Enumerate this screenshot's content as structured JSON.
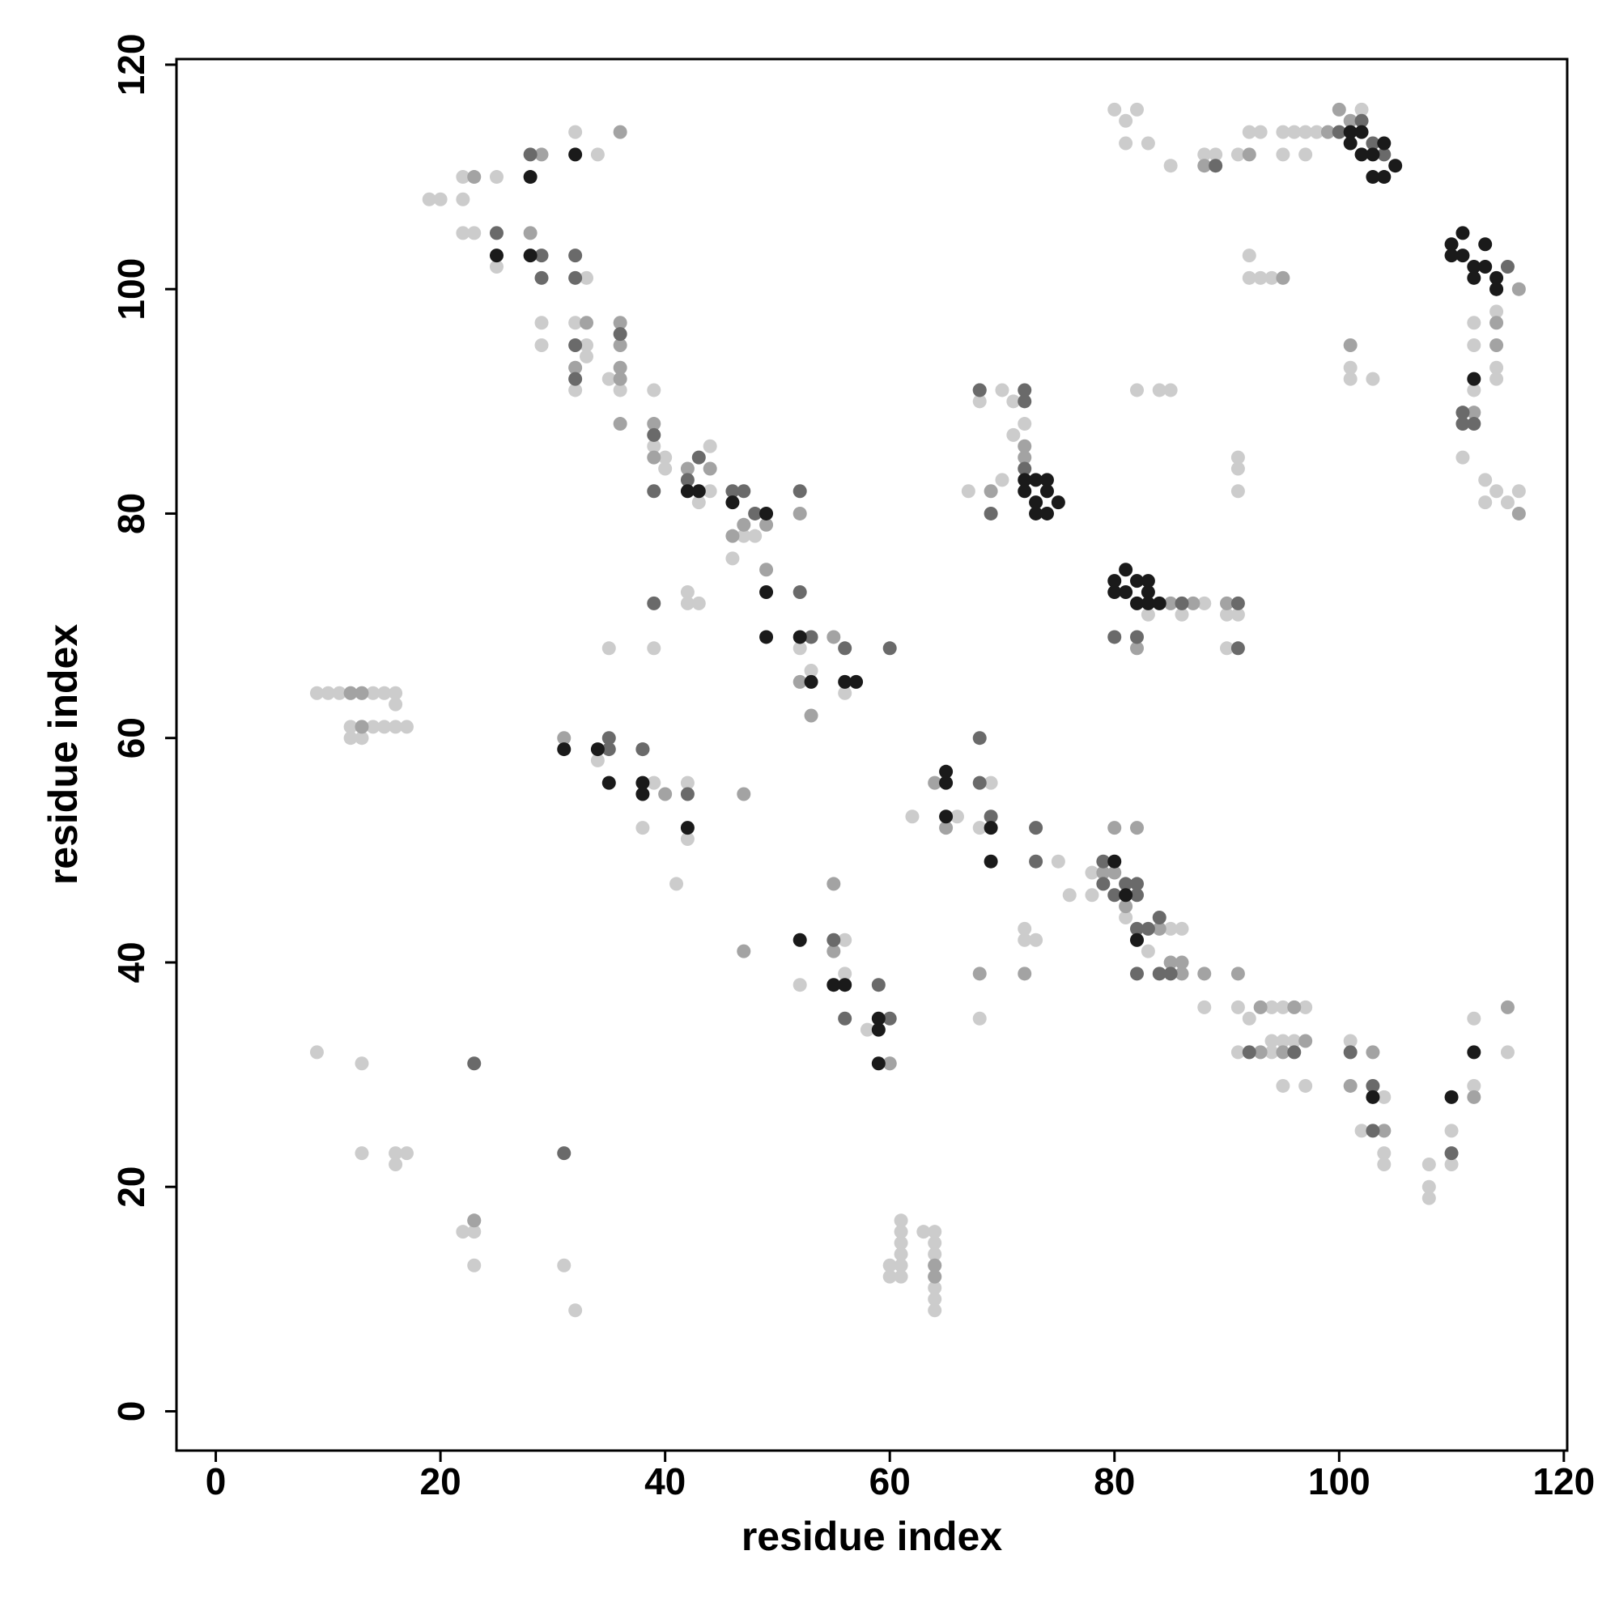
{
  "chart_data": {
    "type": "scatter",
    "xlabel": "residue index",
    "ylabel": "residue index",
    "xlim": [
      -3.5,
      120.3
    ],
    "ylim": [
      -3.5,
      120.5
    ],
    "xticks": [
      0,
      20,
      40,
      60,
      80,
      100,
      120
    ],
    "yticks": [
      0,
      20,
      40,
      60,
      80,
      100,
      120
    ],
    "series": [
      {
        "color": "#cccccc",
        "x": [
          19,
          20,
          22,
          22,
          22,
          23,
          25,
          25,
          32,
          34,
          29,
          29,
          33,
          32,
          33,
          33,
          35,
          36,
          32,
          39,
          39,
          44,
          40,
          43,
          44,
          47,
          48,
          46,
          40,
          42,
          42,
          43,
          35,
          39,
          52,
          53,
          56,
          80,
          81,
          82,
          81,
          83,
          85,
          88,
          89,
          91,
          92,
          93,
          95,
          96,
          95,
          97,
          98,
          97,
          102,
          92,
          93,
          94,
          101,
          101,
          103,
          112,
          112,
          112,
          111,
          113,
          113,
          114,
          115,
          116,
          114,
          114,
          114,
          82,
          84,
          85,
          91,
          91,
          91,
          92,
          68,
          70,
          71,
          71,
          70,
          72,
          67,
          83,
          86,
          88,
          90,
          91,
          90,
          34,
          38,
          39,
          42,
          41,
          42,
          62,
          66,
          68,
          69,
          75,
          76,
          78,
          78,
          81,
          82,
          83,
          85,
          86,
          72,
          72,
          73,
          68,
          88,
          91,
          92,
          94,
          95,
          97,
          91,
          92,
          94,
          94,
          95,
          96,
          95,
          97,
          101,
          102,
          104,
          104,
          104,
          104,
          108,
          108,
          108,
          110,
          110,
          112,
          112,
          115,
          58,
          56,
          56,
          52,
          59,
          60,
          9,
          10,
          11,
          12,
          13,
          14,
          15,
          16,
          16,
          12,
          12,
          13,
          13,
          14,
          15,
          16,
          17,
          9,
          13,
          13,
          16,
          16,
          17,
          22,
          23,
          23,
          23,
          31,
          32,
          60,
          60,
          61,
          61,
          61,
          61,
          61,
          61,
          63,
          64,
          64,
          64,
          64,
          64,
          64,
          64,
          64
        ],
        "y": [
          108,
          108,
          110,
          108,
          105,
          105,
          110,
          102,
          114,
          112,
          97,
          95,
          101,
          97,
          95,
          94,
          92,
          91,
          91,
          91,
          86,
          86,
          85,
          81,
          82,
          78,
          78,
          76,
          84,
          73,
          72,
          72,
          68,
          68,
          68,
          66,
          64,
          116,
          115,
          116,
          113,
          113,
          111,
          112,
          112,
          112,
          114,
          114,
          114,
          114,
          112,
          114,
          114,
          112,
          116,
          101,
          101,
          101,
          93,
          92,
          92,
          97,
          95,
          91,
          85,
          83,
          81,
          82,
          81,
          82,
          93,
          92,
          98,
          91,
          91,
          91,
          85,
          84,
          82,
          103,
          90,
          91,
          90,
          87,
          83,
          88,
          82,
          71,
          71,
          72,
          71,
          71,
          68,
          58,
          52,
          56,
          56,
          47,
          51,
          53,
          53,
          52,
          56,
          49,
          46,
          48,
          46,
          44,
          42,
          41,
          43,
          43,
          43,
          42,
          42,
          35,
          36,
          36,
          35,
          36,
          36,
          36,
          32,
          32,
          32,
          33,
          33,
          33,
          29,
          29,
          33,
          25,
          25,
          28,
          23,
          22,
          22,
          20,
          19,
          25,
          22,
          35,
          29,
          32,
          34,
          39,
          42,
          38,
          34,
          31,
          64,
          64,
          64,
          64,
          64,
          64,
          64,
          64,
          63,
          61,
          60,
          61,
          60,
          61,
          61,
          61,
          61,
          32,
          31,
          23,
          23,
          22,
          23,
          16,
          17,
          16,
          13,
          13,
          9,
          13,
          12,
          17,
          16,
          15,
          14,
          13,
          12,
          16,
          16,
          15,
          14,
          13,
          12,
          11,
          10,
          9
        ]
      },
      {
        "color": "#a3a3a3",
        "x": [
          23,
          28,
          29,
          36,
          33,
          36,
          36,
          36,
          36,
          32,
          36,
          39,
          39,
          42,
          44,
          46,
          47,
          49,
          49,
          52,
          52,
          53,
          55,
          99,
          100,
          101,
          95,
          112,
          114,
          114,
          101,
          116,
          116,
          88,
          92,
          68,
          69,
          72,
          72,
          82,
          85,
          87,
          90,
          31,
          38,
          40,
          47,
          47,
          55,
          55,
          60,
          65,
          68,
          72,
          80,
          82,
          79,
          80,
          81,
          84,
          85,
          86,
          86,
          88,
          91,
          93,
          96,
          97,
          93,
          95,
          103,
          101,
          104,
          112,
          115,
          64,
          12,
          13,
          13,
          23,
          64,
          64
        ],
        "y": [
          110,
          105,
          112,
          114,
          97,
          97,
          95,
          93,
          92,
          93,
          88,
          88,
          85,
          84,
          84,
          78,
          79,
          79,
          75,
          80,
          65,
          62,
          69,
          114,
          116,
          115,
          101,
          89,
          97,
          95,
          95,
          100,
          80,
          111,
          112,
          91,
          82,
          86,
          85,
          68,
          72,
          72,
          72,
          60,
          59,
          55,
          55,
          41,
          47,
          41,
          31,
          52,
          39,
          39,
          52,
          52,
          48,
          48,
          45,
          43,
          40,
          40,
          39,
          39,
          39,
          36,
          36,
          33,
          32,
          32,
          32,
          29,
          25,
          28,
          36,
          56,
          64,
          64,
          61,
          17,
          13,
          12
        ]
      },
      {
        "color": "#6a6a6a",
        "x": [
          28,
          25,
          29,
          29,
          32,
          32,
          32,
          32,
          36,
          39,
          39,
          42,
          43,
          46,
          47,
          48,
          39,
          52,
          56,
          60,
          53,
          52,
          89,
          100,
          103,
          104,
          102,
          111,
          111,
          112,
          115,
          114,
          68,
          72,
          72,
          69,
          72,
          80,
          82,
          86,
          91,
          91,
          35,
          35,
          38,
          42,
          68,
          68,
          69,
          73,
          73,
          79,
          79,
          80,
          81,
          82,
          82,
          82,
          83,
          82,
          84,
          85,
          84,
          55,
          59,
          60,
          56,
          96,
          101,
          103,
          103,
          110,
          31,
          23,
          92
        ],
        "y": [
          112,
          105,
          103,
          101,
          103,
          101,
          95,
          92,
          96,
          87,
          82,
          83,
          85,
          82,
          82,
          80,
          72,
          82,
          68,
          68,
          69,
          73,
          111,
          114,
          113,
          112,
          115,
          89,
          88,
          88,
          102,
          100,
          91,
          91,
          90,
          80,
          84,
          69,
          69,
          72,
          72,
          68,
          60,
          59,
          59,
          55,
          60,
          56,
          53,
          52,
          49,
          49,
          47,
          46,
          47,
          47,
          46,
          43,
          43,
          39,
          39,
          39,
          44,
          42,
          38,
          35,
          35,
          32,
          32,
          29,
          25,
          23,
          23,
          31,
          32
        ]
      },
      {
        "color": "#1a1a1a",
        "x": [
          32,
          28,
          25,
          28,
          42,
          43,
          46,
          49,
          49,
          49,
          52,
          53,
          56,
          57,
          101,
          101,
          102,
          102,
          103,
          104,
          103,
          104,
          105,
          110,
          110,
          111,
          111,
          112,
          112,
          113,
          113,
          114,
          114,
          112,
          72,
          72,
          73,
          73,
          74,
          74,
          73,
          74,
          75,
          80,
          80,
          81,
          81,
          82,
          82,
          83,
          83,
          83,
          84,
          31,
          34,
          35,
          38,
          38,
          42,
          52,
          55,
          56,
          59,
          59,
          59,
          65,
          65,
          65,
          69,
          69,
          80,
          81,
          82,
          103,
          110,
          112
        ],
        "y": [
          112,
          110,
          103,
          103,
          82,
          82,
          81,
          80,
          73,
          69,
          69,
          65,
          65,
          65,
          114,
          113,
          114,
          112,
          112,
          113,
          110,
          110,
          111,
          104,
          103,
          105,
          103,
          102,
          101,
          104,
          102,
          100,
          101,
          92,
          83,
          82,
          83,
          81,
          83,
          82,
          80,
          80,
          81,
          74,
          73,
          75,
          73,
          74,
          72,
          74,
          73,
          72,
          72,
          59,
          59,
          56,
          56,
          55,
          52,
          42,
          38,
          38,
          35,
          34,
          31,
          57,
          56,
          53,
          52,
          49,
          49,
          46,
          42,
          28,
          28,
          32
        ]
      }
    ]
  }
}
